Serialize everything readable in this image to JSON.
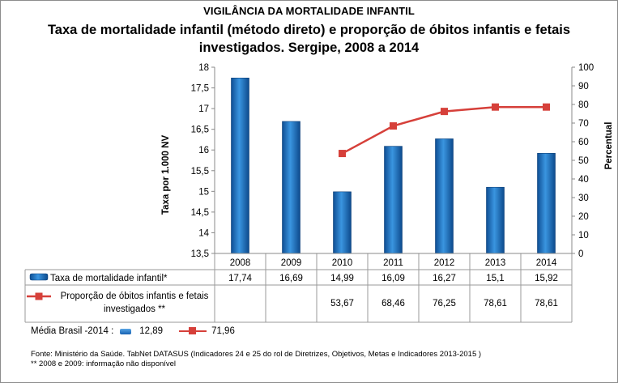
{
  "header": {
    "supertitle": "VIGILÂNCIA DA MORTALIDADE INFANTIL",
    "title": "Taxa de mortalidade infantil (método direto) e proporção de óbitos infantis e fetais investigados. Sergipe, 2008 a 2014"
  },
  "chart_data": {
    "type": "bar",
    "title": "Taxa de mortalidade infantil (método direto) e proporção de óbitos infantis e fetais investigados. Sergipe, 2008 a 2014",
    "categories": [
      "2008",
      "2009",
      "2010",
      "2011",
      "2012",
      "2013",
      "2014"
    ],
    "ylabel": "Taxa por 1.000 NV",
    "y2label": "Percentual",
    "ylim": [
      13.5,
      18
    ],
    "yticks": [
      "13,5",
      "14",
      "14,5",
      "15",
      "15,5",
      "16",
      "16,5",
      "17",
      "17,5",
      "18"
    ],
    "y2lim": [
      0,
      100
    ],
    "y2ticks": [
      "0",
      "10",
      "20",
      "30",
      "40",
      "50",
      "60",
      "70",
      "80",
      "90",
      "100"
    ],
    "series": [
      {
        "name": "Taxa de mortalidade infantil*",
        "kind": "bar",
        "axis": "left",
        "values": [
          17.74,
          16.69,
          14.99,
          16.09,
          16.27,
          15.1,
          15.92
        ],
        "labels": [
          "17,74",
          "16,69",
          "14,99",
          "16,09",
          "16,27",
          "15,1",
          "15,92"
        ],
        "color": "#1f77c8"
      },
      {
        "name": "Proporção de óbitos infantis e fetais investigados **",
        "name_lines": [
          "Proporção de óbitos infantis e fetais",
          "investigados **"
        ],
        "kind": "line",
        "axis": "right",
        "values": [
          null,
          null,
          53.67,
          68.46,
          76.25,
          78.61,
          78.61
        ],
        "labels": [
          "",
          "",
          "53,67",
          "68,46",
          "76,25",
          "78,61",
          "78,61"
        ],
        "color": "#d6403a"
      }
    ],
    "grid": false,
    "legend": "data table below plot"
  },
  "legend": {
    "label": "Média Brasil -2014 :",
    "bar_value": "12,89",
    "line_value": "71,96"
  },
  "footer": {
    "source": "Fonte: Ministério da Saúde. TabNet DATASUS (Indicadores 24 e 25 do rol de Diretrizes, Objetivos, Metas e Indicadores 2013-2015 )",
    "note": "** 2008 e 2009: informação não disponível"
  }
}
